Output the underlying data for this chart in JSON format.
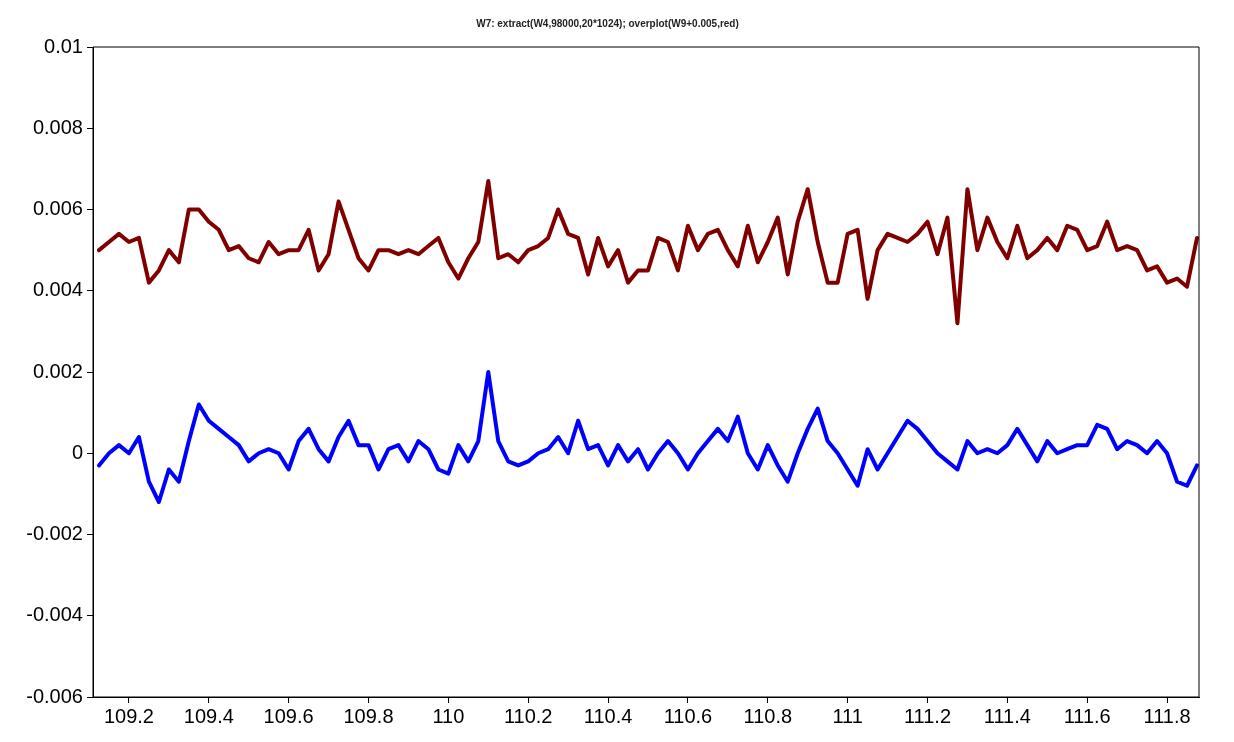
{
  "chart_data": {
    "type": "line",
    "title": "W7: extract(W4,98000,20*1024); overplot(W9+0.005,red)",
    "x": [
      109.125,
      109.15,
      109.175,
      109.2,
      109.225,
      109.25,
      109.275,
      109.3,
      109.325,
      109.35,
      109.375,
      109.4,
      109.425,
      109.45,
      109.475,
      109.5,
      109.525,
      109.55,
      109.575,
      109.6,
      109.625,
      109.65,
      109.675,
      109.7,
      109.725,
      109.75,
      109.775,
      109.8,
      109.825,
      109.85,
      109.875,
      109.9,
      109.925,
      109.95,
      109.975,
      110,
      110.025,
      110.05,
      110.075,
      110.1,
      110.125,
      110.15,
      110.175,
      110.2,
      110.225,
      110.25,
      110.275,
      110.3,
      110.325,
      110.35,
      110.375,
      110.4,
      110.425,
      110.45,
      110.475,
      110.5,
      110.525,
      110.55,
      110.575,
      110.6,
      110.625,
      110.65,
      110.675,
      110.7,
      110.725,
      110.75,
      110.775,
      110.8,
      110.825,
      110.85,
      110.875,
      110.9,
      110.925,
      110.95,
      110.975,
      111,
      111.025,
      111.05,
      111.075,
      111.1,
      111.125,
      111.15,
      111.175,
      111.2,
      111.225,
      111.25,
      111.275,
      111.3,
      111.325,
      111.35,
      111.375,
      111.4,
      111.425,
      111.45,
      111.475,
      111.5,
      111.525,
      111.55,
      111.575,
      111.6,
      111.625,
      111.65,
      111.675,
      111.7,
      111.725,
      111.75,
      111.775,
      111.8,
      111.825,
      111.85,
      111.875
    ],
    "series": [
      {
        "color": "#800000",
        "values": [
          0.005,
          0.0052,
          0.0054,
          0.0052,
          0.0053,
          0.0042,
          0.0045,
          0.005,
          0.0047,
          0.006,
          0.006,
          0.0057,
          0.0055,
          0.005,
          0.0051,
          0.0048,
          0.0047,
          0.0052,
          0.0049,
          0.005,
          0.005,
          0.0055,
          0.0045,
          0.0049,
          0.0062,
          0.0055,
          0.0048,
          0.0045,
          0.005,
          0.005,
          0.0049,
          0.005,
          0.0049,
          0.0051,
          0.0053,
          0.0047,
          0.0043,
          0.0048,
          0.0052,
          0.0067,
          0.0048,
          0.0049,
          0.0047,
          0.005,
          0.0051,
          0.0053,
          0.006,
          0.0054,
          0.0053,
          0.0044,
          0.0053,
          0.0046,
          0.005,
          0.0042,
          0.0045,
          0.0045,
          0.0053,
          0.0052,
          0.0045,
          0.0056,
          0.005,
          0.0054,
          0.0055,
          0.005,
          0.0046,
          0.0056,
          0.0047,
          0.0052,
          0.0058,
          0.0044,
          0.0057,
          0.0065,
          0.0052,
          0.0042,
          0.0042,
          0.0054,
          0.0055,
          0.0038,
          0.005,
          0.0054,
          0.0053,
          0.0052,
          0.0054,
          0.0057,
          0.0049,
          0.0058,
          0.0032,
          0.0065,
          0.005,
          0.0058,
          0.0052,
          0.0048,
          0.0056,
          0.0048,
          0.005,
          0.0053,
          0.005,
          0.0056,
          0.0055,
          0.005,
          0.0051,
          0.0057,
          0.005,
          0.0051,
          0.005,
          0.0045,
          0.0046,
          0.0042,
          0.0043,
          0.0041,
          0.0053
        ]
      },
      {
        "color": "#0000ff",
        "values": [
          -0.0003,
          0,
          0.0002,
          0,
          0.0004,
          -0.0007,
          -0.0012,
          -0.0004,
          -0.0007,
          0.0003,
          0.0012,
          0.0008,
          0.0006,
          0.0004,
          0.0002,
          -0.0002,
          0,
          0.0001,
          0,
          -0.0004,
          0.0003,
          0.0006,
          0.0001,
          -0.0002,
          0.0004,
          0.0008,
          0.0002,
          0.0002,
          -0.0004,
          0.0001,
          0.0002,
          -0.0002,
          0.0003,
          0.0001,
          -0.0004,
          -0.0005,
          0.0002,
          -0.0002,
          0.0003,
          0.002,
          0.0003,
          -0.0002,
          -0.0003,
          -0.0002,
          0,
          0.0001,
          0.0004,
          0,
          0.0008,
          0.0001,
          0.0002,
          -0.0003,
          0.0002,
          -0.0002,
          0.0001,
          -0.0004,
          0,
          0.0003,
          0,
          -0.0004,
          0,
          0.0003,
          0.0006,
          0.0003,
          0.0009,
          0,
          -0.0004,
          0.0002,
          -0.0003,
          -0.0007,
          0,
          0.0006,
          0.0011,
          0.0003,
          0,
          -0.0004,
          -0.0008,
          0.0001,
          -0.0004,
          0,
          0.0004,
          0.0008,
          0.0006,
          0.0003,
          0,
          -0.0002,
          -0.0004,
          0.0003,
          0,
          0.0001,
          0,
          0.0002,
          0.0006,
          0.0002,
          -0.0002,
          0.0003,
          0,
          0.0001,
          0.0002,
          0.0002,
          0.0007,
          0.0006,
          0.0001,
          0.0003,
          0.0002,
          0,
          0.0003,
          0,
          -0.0007,
          -0.0008,
          -0.0003
        ]
      }
    ],
    "xlim": [
      109.11,
      111.88
    ],
    "xticks": [
      109.2,
      109.4,
      109.6,
      109.8,
      110,
      110.2,
      110.4,
      110.6,
      110.8,
      111,
      111.2,
      111.4,
      111.6,
      111.8
    ],
    "ylim": [
      -0.006,
      0.01
    ],
    "yticks": [
      -0.006,
      -0.004,
      -0.002,
      0,
      0.002,
      0.004,
      0.006,
      0.008,
      0.01
    ],
    "grid": false,
    "legend": false,
    "marker": "none",
    "line_style": "solid"
  }
}
